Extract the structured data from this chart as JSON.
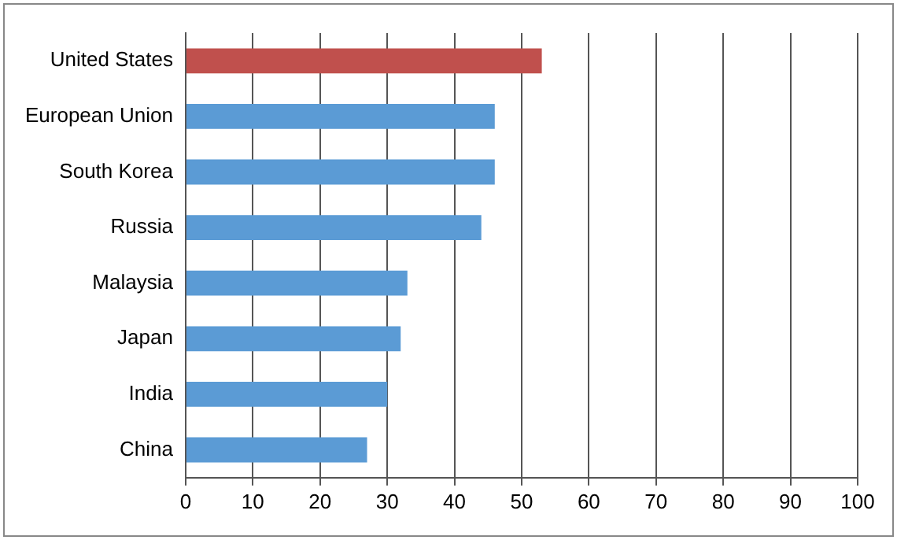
{
  "chart_data": {
    "type": "bar",
    "orientation": "horizontal",
    "categories": [
      "United States",
      "European Union",
      "South Korea",
      "Russia",
      "Malaysia",
      "Japan",
      "India",
      "China"
    ],
    "values": [
      53,
      46,
      46,
      44,
      33,
      32,
      30,
      27
    ],
    "colors": [
      "#c0504d",
      "#5b9bd5",
      "#5b9bd5",
      "#5b9bd5",
      "#5b9bd5",
      "#5b9bd5",
      "#5b9bd5",
      "#5b9bd5"
    ],
    "xlim": [
      0,
      100
    ],
    "xticks": [
      0,
      10,
      20,
      30,
      40,
      50,
      60,
      70,
      80,
      90,
      100
    ],
    "grid": "x",
    "legend": false
  }
}
